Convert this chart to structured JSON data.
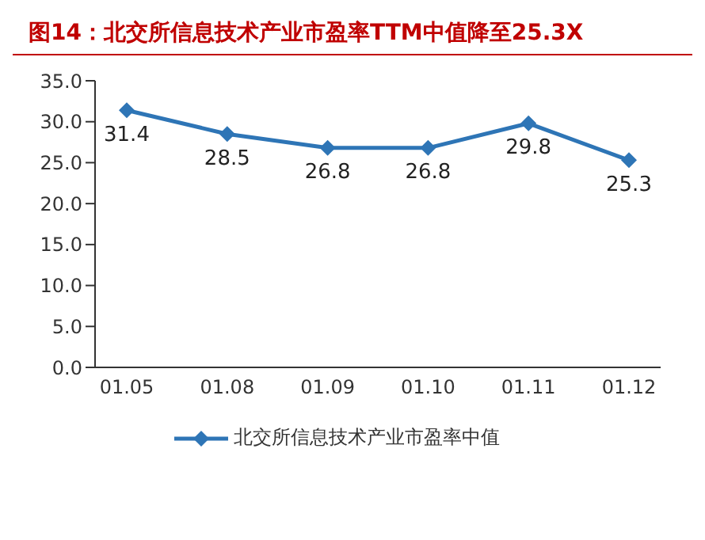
{
  "chart_data": {
    "type": "line",
    "title": "图14：北交所信息技术产业市盈率TTM中值降至25.3X",
    "categories": [
      "01.05",
      "01.08",
      "01.09",
      "01.10",
      "01.11",
      "01.12"
    ],
    "series": [
      {
        "name": "北交所信息技术产业市盈率中值",
        "color": "#2e75b6",
        "values": [
          31.4,
          28.5,
          26.8,
          26.8,
          29.8,
          25.3
        ]
      }
    ],
    "ylim": [
      0,
      35
    ],
    "yticks": [
      {
        "value": 0,
        "label": "0.0"
      },
      {
        "value": 5,
        "label": "5.0"
      },
      {
        "value": 10,
        "label": "10.0"
      },
      {
        "value": 15,
        "label": "15.0"
      },
      {
        "value": 20,
        "label": "20.0"
      },
      {
        "value": 25,
        "label": "25.0"
      },
      {
        "value": 30,
        "label": "30.0"
      },
      {
        "value": 35,
        "label": "35.0"
      }
    ],
    "grid": false,
    "legend": "bottom",
    "marker": "diamond",
    "line_style": "solid",
    "data_labels": true
  }
}
